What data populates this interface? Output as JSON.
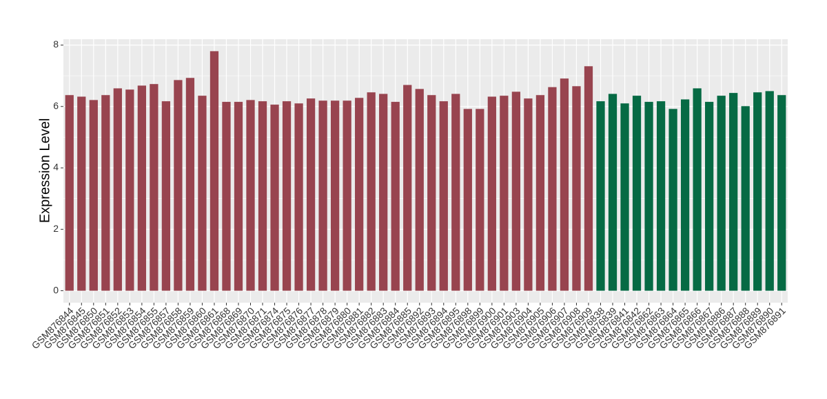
{
  "chart_data": {
    "type": "bar",
    "y_label": "Expression Level",
    "categories": [
      "GSM876844",
      "GSM876845",
      "GSM876850",
      "GSM876851",
      "GSM876852",
      "GSM876853",
      "GSM876854",
      "GSM876855",
      "GSM876857",
      "GSM876858",
      "GSM876859",
      "GSM876860",
      "GSM876861",
      "GSM876868",
      "GSM876869",
      "GSM876870",
      "GSM876871",
      "GSM876874",
      "GSM876875",
      "GSM876876",
      "GSM876877",
      "GSM876878",
      "GSM876879",
      "GSM876880",
      "GSM876881",
      "GSM876882",
      "GSM876883",
      "GSM876884",
      "GSM876885",
      "GSM876892",
      "GSM876893",
      "GSM876894",
      "GSM876895",
      "GSM876898",
      "GSM876899",
      "GSM876900",
      "GSM876901",
      "GSM876903",
      "GSM876904",
      "GSM876905",
      "GSM876906",
      "GSM876907",
      "GSM876908",
      "GSM876909",
      "GSM876838",
      "GSM876839",
      "GSM876841",
      "GSM876842",
      "GSM876862",
      "GSM876863",
      "GSM876864",
      "GSM876865",
      "GSM876866",
      "GSM876867",
      "GSM876886",
      "GSM876887",
      "GSM876888",
      "GSM876889",
      "GSM876890",
      "GSM876891"
    ],
    "values": [
      6.37,
      6.32,
      6.21,
      6.37,
      6.59,
      6.55,
      6.68,
      6.73,
      6.17,
      6.86,
      6.93,
      6.35,
      7.8,
      6.15,
      6.15,
      6.21,
      6.17,
      6.06,
      6.17,
      6.1,
      6.26,
      6.19,
      6.19,
      6.19,
      6.28,
      6.46,
      6.41,
      6.15,
      6.7,
      6.57,
      6.37,
      6.17,
      6.41,
      5.92,
      5.92,
      6.32,
      6.35,
      6.48,
      6.26,
      6.37,
      6.63,
      6.91,
      6.66,
      7.31,
      6.17,
      6.41,
      6.1,
      6.35,
      6.15,
      6.17,
      5.92,
      6.23,
      6.59,
      6.15,
      6.35,
      6.44,
      6.01,
      6.46,
      6.5,
      6.37
    ],
    "colors": [
      "#98444f",
      "#98444f",
      "#98444f",
      "#98444f",
      "#98444f",
      "#98444f",
      "#98444f",
      "#98444f",
      "#98444f",
      "#98444f",
      "#98444f",
      "#98444f",
      "#98444f",
      "#98444f",
      "#98444f",
      "#98444f",
      "#98444f",
      "#98444f",
      "#98444f",
      "#98444f",
      "#98444f",
      "#98444f",
      "#98444f",
      "#98444f",
      "#98444f",
      "#98444f",
      "#98444f",
      "#98444f",
      "#98444f",
      "#98444f",
      "#98444f",
      "#98444f",
      "#98444f",
      "#98444f",
      "#98444f",
      "#98444f",
      "#98444f",
      "#98444f",
      "#98444f",
      "#98444f",
      "#98444f",
      "#98444f",
      "#98444f",
      "#98444f",
      "#066a44",
      "#066a44",
      "#066a44",
      "#066a44",
      "#066a44",
      "#066a44",
      "#066a44",
      "#066a44",
      "#066a44",
      "#066a44",
      "#066a44",
      "#066a44",
      "#066a44",
      "#066a44",
      "#066a44",
      "#066a44"
    ],
    "ylim": [
      -0.39,
      8.19
    ],
    "yticks": [
      0,
      2,
      4,
      6,
      8
    ],
    "grid": true
  }
}
